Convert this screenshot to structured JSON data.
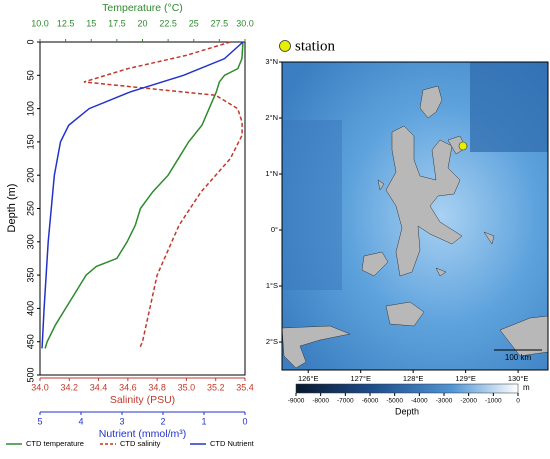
{
  "chart_data": {
    "type": "line",
    "ylabel": "Depth (m)",
    "ylim": [
      0,
      500
    ],
    "yticks": [
      0,
      50,
      100,
      150,
      200,
      250,
      300,
      350,
      400,
      450,
      500
    ],
    "axes": [
      {
        "id": "temperature",
        "label": "Temperature (°C)",
        "side": "top",
        "color": "#2e8b2e",
        "lim": [
          10,
          30
        ],
        "ticks": [
          {
            "value": 10,
            "label": "10.0"
          },
          12.5,
          15,
          17.5,
          20,
          22.5,
          25,
          27.5,
          {
            "value": 30,
            "label": "30.0"
          }
        ]
      },
      {
        "id": "salinity",
        "label": "Salinity (PSU)",
        "side": "bottom",
        "color": "#c0392b",
        "lim": [
          34,
          35.4
        ],
        "ticks": [
          {
            "value": 34,
            "label": "34.0"
          },
          34.2,
          34.4,
          34.6,
          34.8,
          {
            "value": 35,
            "label": "35.0"
          },
          35.2,
          35.4
        ]
      },
      {
        "id": "nutrient",
        "label": "Nutrient (mmol/m³)",
        "side": "bottom",
        "color": "#2233cc",
        "lim": [
          5,
          0
        ],
        "ticks": [
          5,
          4,
          3,
          2,
          1,
          0
        ]
      }
    ],
    "series": [
      {
        "name": "CTD temperature",
        "color": "#2e8b2e",
        "dash": false,
        "axis": "temperature",
        "depth": [
          0,
          25,
          40,
          50,
          60,
          75,
          100,
          125,
          150,
          175,
          200,
          225,
          250,
          275,
          300,
          325,
          337,
          350,
          375,
          400,
          425,
          450,
          460
        ],
        "values": [
          29.8,
          29.7,
          29.3,
          28.0,
          27.5,
          27.2,
          26.5,
          25.8,
          24.5,
          23.5,
          22.5,
          21.0,
          19.8,
          19.3,
          18.5,
          17.5,
          15.5,
          14.5,
          13.5,
          12.5,
          11.5,
          10.7,
          10.5
        ]
      },
      {
        "name": "CTD salinity",
        "color": "#c0392b",
        "dash": true,
        "axis": "salinity",
        "depth": [
          0,
          20,
          40,
          60,
          80,
          100,
          120,
          140,
          175,
          225,
          275,
          325,
          350,
          400,
          450,
          460
        ],
        "values": [
          35.3,
          35.0,
          34.6,
          34.3,
          35.2,
          35.35,
          35.38,
          35.38,
          35.3,
          35.1,
          34.95,
          34.85,
          34.8,
          34.75,
          34.7,
          34.68
        ]
      },
      {
        "name": "CTD Nutrient",
        "color": "#2233cc",
        "dash": false,
        "axis": "nutrient",
        "depth": [
          0,
          25,
          50,
          75,
          100,
          125,
          150,
          200,
          300,
          400,
          460
        ],
        "values": [
          0.05,
          0.5,
          1.5,
          2.8,
          3.8,
          4.3,
          4.5,
          4.65,
          4.8,
          4.9,
          4.95
        ]
      }
    ]
  },
  "map": {
    "lonlim": [
      125.5,
      130.57
    ],
    "latlim": [
      -2.5,
      3.0
    ],
    "lonticks": [
      {
        "value": 126,
        "label": "126°E"
      },
      {
        "value": 127,
        "label": "127°E"
      },
      {
        "value": 128,
        "label": "128°E"
      },
      {
        "value": 129,
        "label": "129°E"
      },
      {
        "value": 130,
        "label": "130°E"
      }
    ],
    "latticks": [
      {
        "value": 3,
        "label": "3°N"
      },
      {
        "value": 2,
        "label": "2°N"
      },
      {
        "value": 1,
        "label": "1°N"
      },
      {
        "value": 0,
        "label": "0°"
      },
      {
        "value": -1,
        "label": "1°S"
      },
      {
        "value": -2,
        "label": "2°S"
      }
    ],
    "station": {
      "label": "station",
      "lon": 128.95,
      "lat": 1.5
    },
    "scale_label": "100 km",
    "colorbar": {
      "label": "Depth",
      "unit": "m",
      "lim": [
        -9000,
        0
      ],
      "ticks": [
        -9000,
        -8000,
        -7000,
        -6000,
        -5000,
        -4000,
        -3000,
        -2000,
        -1000,
        0
      ]
    }
  }
}
